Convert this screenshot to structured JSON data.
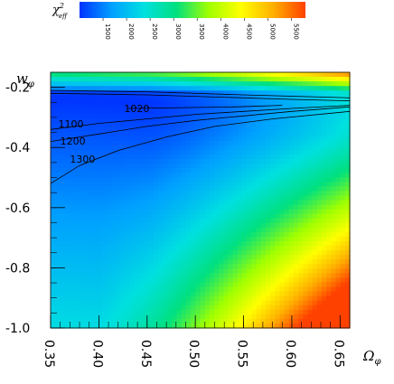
{
  "chart_data": {
    "type": "heatmap",
    "title": "",
    "xlabel": "Ω",
    "xlabel_sub": "φ",
    "ylabel": "w",
    "ylabel_sub": "φ",
    "xlim": [
      0.35,
      0.66
    ],
    "ylim": [
      -1.0,
      -0.15
    ],
    "x_ticks": [
      "0.35",
      "0.40",
      "0.45",
      "0.50",
      "0.55",
      "0.60",
      "0.65"
    ],
    "y_ticks": [
      "-0.2",
      "-0.4",
      "-0.6",
      "-0.8",
      "-1.0"
    ],
    "colorbar": {
      "label": "χ",
      "label_sup": "2",
      "label_sub": "eff",
      "range": [
        1000,
        5800
      ],
      "ticks": [
        "1500",
        "2000",
        "2500",
        "3000",
        "3500",
        "4000",
        "4500",
        "5000",
        "5500"
      ],
      "colors": [
        "#0033ff",
        "#00a0ff",
        "#00e0e0",
        "#00e080",
        "#a0ff00",
        "#ffff00",
        "#ffb000",
        "#ff4000"
      ]
    },
    "contours": [
      {
        "level": "1020",
        "points": [
          [
            0.43,
            -0.27
          ],
          [
            0.54,
            -0.265
          ],
          [
            0.59,
            -0.26
          ]
        ]
      },
      {
        "level": "1100",
        "points": [
          [
            0.35,
            -0.34
          ],
          [
            0.4,
            -0.32
          ],
          [
            0.45,
            -0.305
          ],
          [
            0.5,
            -0.29
          ],
          [
            0.55,
            -0.28
          ],
          [
            0.6,
            -0.27
          ],
          [
            0.66,
            -0.26
          ]
        ]
      },
      {
        "level": "1200",
        "points": [
          [
            0.35,
            -0.38
          ],
          [
            0.4,
            -0.355
          ],
          [
            0.45,
            -0.33
          ],
          [
            0.5,
            -0.31
          ],
          [
            0.55,
            -0.295
          ],
          [
            0.6,
            -0.28
          ],
          [
            0.66,
            -0.265
          ]
        ]
      },
      {
        "level": "1300",
        "points": [
          [
            0.35,
            -0.52
          ],
          [
            0.38,
            -0.46
          ],
          [
            0.42,
            -0.41
          ],
          [
            0.47,
            -0.365
          ],
          [
            0.52,
            -0.33
          ],
          [
            0.58,
            -0.305
          ],
          [
            0.66,
            -0.28
          ]
        ]
      },
      {
        "level": "",
        "points": [
          [
            0.35,
            -0.22
          ],
          [
            0.45,
            -0.225
          ],
          [
            0.55,
            -0.235
          ],
          [
            0.6,
            -0.24
          ],
          [
            0.66,
            -0.245
          ]
        ]
      },
      {
        "level": "",
        "points": [
          [
            0.35,
            -0.21
          ],
          [
            0.45,
            -0.215
          ],
          [
            0.55,
            -0.225
          ],
          [
            0.66,
            -0.235
          ]
        ]
      }
    ]
  }
}
